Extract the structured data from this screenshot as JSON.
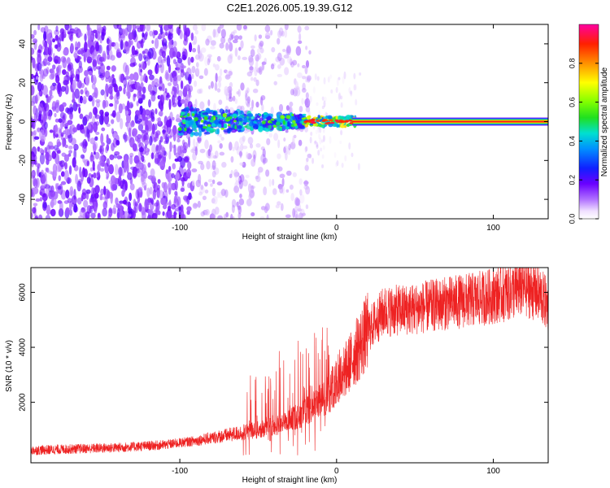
{
  "title": "C2E1.2026.005.19.39.G12",
  "chart_data": [
    {
      "type": "heatmap",
      "name": "spectrogram",
      "xlabel": "Height of straight line (km)",
      "ylabel": "Frequency (Hz)",
      "xlim": [
        -195,
        135
      ],
      "ylim": [
        -50,
        50
      ],
      "x_ticks": [
        -100,
        0,
        100
      ],
      "x_tick_labels": [
        "-100",
        "0",
        "100"
      ],
      "y_ticks": [
        -40,
        -20,
        0,
        20,
        40
      ],
      "y_tick_labels": [
        "-40",
        "-20",
        "0",
        "20",
        "40"
      ],
      "colorbar": {
        "label": "Normalized spectral amplitude",
        "range": [
          0,
          1
        ],
        "ticks": [
          0.0,
          0.2,
          0.4,
          0.6,
          0.8
        ],
        "tick_labels": [
          "0.0",
          "0.2",
          "0.4",
          "0.6",
          "0.8"
        ]
      },
      "features": [
        {
          "x_range": [
            -195,
            -92
          ],
          "freq_range": [
            -50,
            50
          ],
          "amplitude": 0.12,
          "description_of_data": "broadband noise"
        },
        {
          "x_range": [
            -100,
            -20
          ],
          "freq_range": [
            -8,
            8
          ],
          "amplitude": 0.45
        },
        {
          "x_range": [
            -20,
            10
          ],
          "freq_range": [
            -3,
            3
          ],
          "amplitude": 0.75
        },
        {
          "x_range": [
            10,
            135
          ],
          "freq_range": [
            -1,
            1
          ],
          "amplitude": 0.95
        }
      ]
    },
    {
      "type": "line",
      "name": "snr",
      "xlabel": "Height of straight line (km)",
      "ylabel": "SNR (10 * v/v)",
      "xlim": [
        -195,
        135
      ],
      "ylim": [
        -200,
        6900
      ],
      "x_ticks": [
        -100,
        0,
        100
      ],
      "x_tick_labels": [
        "-100",
        "0",
        "100"
      ],
      "y_ticks": [
        2000,
        4000,
        6000
      ],
      "y_tick_labels": [
        "2000",
        "4000",
        "6000"
      ],
      "color": "#ee2222",
      "series_envelope": {
        "x": [
          -195,
          -170,
          -140,
          -110,
          -90,
          -70,
          -50,
          -35,
          -25,
          -15,
          -5,
          0,
          5,
          10,
          20,
          30,
          50,
          70,
          90,
          110,
          120,
          130,
          135
        ],
        "y": [
          250,
          300,
          350,
          450,
          600,
          800,
          1000,
          1200,
          1500,
          1800,
          2300,
          2800,
          3100,
          3600,
          4600,
          5300,
          5400,
          5600,
          5750,
          6000,
          6200,
          5900,
          5500
        ]
      }
    }
  ]
}
